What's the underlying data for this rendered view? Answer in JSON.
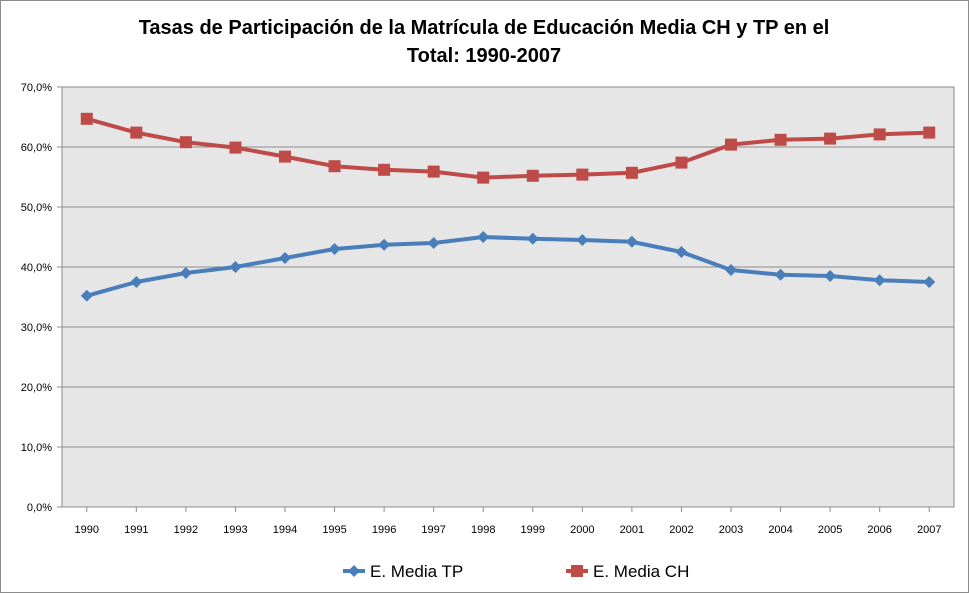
{
  "chart_data": {
    "type": "line",
    "title_lines": [
      "Tasas de Participación de la Matrícula de Educación Media CH y TP en el",
      "Total: 1990-2007"
    ],
    "xlabel": "",
    "ylabel": "",
    "categories": [
      "1990",
      "1991",
      "1992",
      "1993",
      "1994",
      "1995",
      "1996",
      "1997",
      "1998",
      "1999",
      "2000",
      "2001",
      "2002",
      "2003",
      "2004",
      "2005",
      "2006",
      "2007"
    ],
    "ylim": [
      0,
      70
    ],
    "yticks": [
      0,
      10,
      20,
      30,
      40,
      50,
      60,
      70
    ],
    "ytick_labels": [
      "0,0%",
      "10,0%",
      "20,0%",
      "30,0%",
      "40,0%",
      "50,0%",
      "60,0%",
      "70,0%"
    ],
    "grid": true,
    "legend_position": "bottom",
    "series": [
      {
        "name": "E. Media TP",
        "color": "#4a7ebb",
        "marker": "diamond",
        "values": [
          35.2,
          37.5,
          39.0,
          40.0,
          41.5,
          43.0,
          43.7,
          44.0,
          45.0,
          44.7,
          44.5,
          44.2,
          42.5,
          39.5,
          38.7,
          38.5,
          37.8,
          37.5
        ]
      },
      {
        "name": "E. Media CH",
        "color": "#be4b48",
        "marker": "square",
        "values": [
          64.7,
          62.4,
          60.8,
          59.9,
          58.4,
          56.8,
          56.2,
          55.9,
          54.9,
          55.2,
          55.4,
          55.7,
          57.4,
          60.4,
          61.2,
          61.4,
          62.1,
          62.4
        ]
      }
    ]
  }
}
